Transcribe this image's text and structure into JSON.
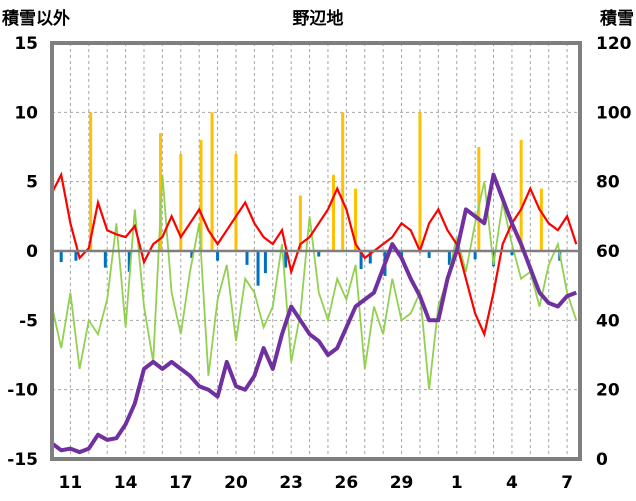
{
  "chart_data": {
    "type": "line",
    "title": "野辺地",
    "ylabel_left": "積雪以外",
    "ylabel_right": "積雪",
    "ylim_left": [
      -15,
      15
    ],
    "ylim_right": [
      0,
      120
    ],
    "yticks_left": [
      "15",
      "10",
      "5",
      "0",
      "-5",
      "-10",
      "-15"
    ],
    "yticks_right": [
      "120",
      "100",
      "80",
      "60",
      "40",
      "20",
      "0"
    ],
    "xticks": [
      "11",
      "14",
      "17",
      "20",
      "23",
      "26",
      "29",
      "1",
      "4",
      "7"
    ],
    "grid": "on",
    "colors": {
      "temperature": "#ff0000",
      "humidity_like": "#92d050",
      "snowfall": "#ffc000",
      "precip_negative": "#0070c0",
      "snow_depth": "#7030a0",
      "frame": "#7f7f7f"
    },
    "x": [
      10.0,
      10.5,
      11.0,
      11.5,
      12.0,
      12.5,
      13.0,
      13.5,
      14.0,
      14.5,
      15.0,
      15.5,
      16.0,
      16.5,
      17.0,
      17.5,
      18.0,
      18.5,
      19.0,
      19.5,
      20.0,
      20.5,
      21.0,
      21.5,
      22.0,
      22.5,
      23.0,
      23.5,
      24.0,
      24.5,
      25.0,
      25.5,
      26.0,
      26.5,
      27.0,
      27.5,
      28.0,
      28.5,
      29.0,
      29.5,
      30.0,
      30.5,
      31.0,
      31.5,
      32.0,
      32.5,
      33.0,
      33.5,
      34.0,
      34.5,
      35.0,
      35.5,
      36.0,
      36.5,
      37.0,
      37.5,
      38.0,
      38.5
    ],
    "series": [
      {
        "key": "temperature",
        "values": [
          4.2,
          5.5,
          2.0,
          -0.5,
          0.2,
          3.5,
          1.5,
          1.2,
          1.0,
          1.8,
          -0.8,
          0.5,
          1.0,
          2.5,
          1.0,
          2.0,
          3.0,
          1.5,
          0.5,
          1.5,
          2.5,
          3.5,
          2.0,
          1.0,
          0.5,
          1.5,
          -1.5,
          0.5,
          1.0,
          2.0,
          3.0,
          4.5,
          3.0,
          0.5,
          -0.5,
          0.0,
          0.5,
          1.0,
          2.0,
          1.5,
          0.0,
          2.0,
          3.0,
          1.5,
          0.5,
          -2.0,
          -4.5,
          -6.0,
          -3.0,
          0.5,
          2.0,
          3.0,
          4.5,
          3.0,
          2.0,
          1.5,
          2.5,
          0.5
        ]
      },
      {
        "key": "humidity_like",
        "values": [
          -4.0,
          -7.0,
          -3.0,
          -8.5,
          -5.0,
          -6.0,
          -3.5,
          2.0,
          -5.5,
          3.0,
          -4.0,
          -8.0,
          5.5,
          -3.0,
          -6.0,
          -1.5,
          2.0,
          -9.0,
          -3.5,
          -1.0,
          -6.5,
          -2.0,
          -3.0,
          -5.5,
          -4.0,
          0.5,
          -8.0,
          -4.5,
          2.5,
          -3.0,
          -5.0,
          -2.0,
          -3.5,
          -1.0,
          -8.5,
          -4.0,
          -6.0,
          -2.0,
          -5.0,
          -4.5,
          -3.0,
          -10.0,
          -4.0,
          -2.0,
          1.0,
          -1.5,
          2.0,
          5.0,
          -1.0,
          3.5,
          0.5,
          -2.0,
          -1.5,
          -4.0,
          -1.0,
          0.5,
          -3.0,
          -5.0
        ]
      },
      {
        "key": "snow_depth",
        "values": [
          4.5,
          2.5,
          3.0,
          2.0,
          3.0,
          7.0,
          5.5,
          6.0,
          10.0,
          16.0,
          26.0,
          28.0,
          26.0,
          28.0,
          26.0,
          24.0,
          21.0,
          20.0,
          18.0,
          28.0,
          21.0,
          20.0,
          24.0,
          32.0,
          26.0,
          36.0,
          44.0,
          40.0,
          36.0,
          34.0,
          30.0,
          32.0,
          38.0,
          44.0,
          46.0,
          48.0,
          55.0,
          62.0,
          58.0,
          52.0,
          47.0,
          40.0,
          40.0,
          52.0,
          60.0,
          72.0,
          70.0,
          68.0,
          82.0,
          75.0,
          68.0,
          62.0,
          55.0,
          48.0,
          45.0,
          44.0,
          47.0,
          48.0
        ]
      }
    ],
    "bars": {
      "snowfall": {
        "x": [
          12.1,
          15.9,
          17.0,
          18.1,
          18.7,
          20.0,
          23.5,
          25.3,
          25.8,
          26.5,
          30.0,
          33.2,
          35.5,
          36.6
        ],
        "values": [
          10.0,
          8.5,
          7.0,
          8.0,
          10.0,
          7.0,
          4.0,
          5.5,
          10.0,
          4.5,
          10.0,
          7.5,
          8.0,
          4.5
        ]
      },
      "precip_negative": {
        "x": [
          10.5,
          11.3,
          12.9,
          14.2,
          17.6,
          19.0,
          20.6,
          21.2,
          21.6,
          22.7,
          24.5,
          26.8,
          27.3,
          28.1,
          29.0,
          30.5,
          31.6,
          33.0,
          34.0,
          35.0,
          37.6
        ],
        "values": [
          -0.8,
          -0.7,
          -1.2,
          -1.5,
          -0.5,
          -0.7,
          -1.0,
          -2.5,
          -1.6,
          -1.2,
          -0.4,
          -1.3,
          -0.9,
          -1.8,
          -0.6,
          -0.5,
          -1.0,
          -0.6,
          -1.1,
          -0.3,
          -0.7
        ]
      }
    }
  }
}
